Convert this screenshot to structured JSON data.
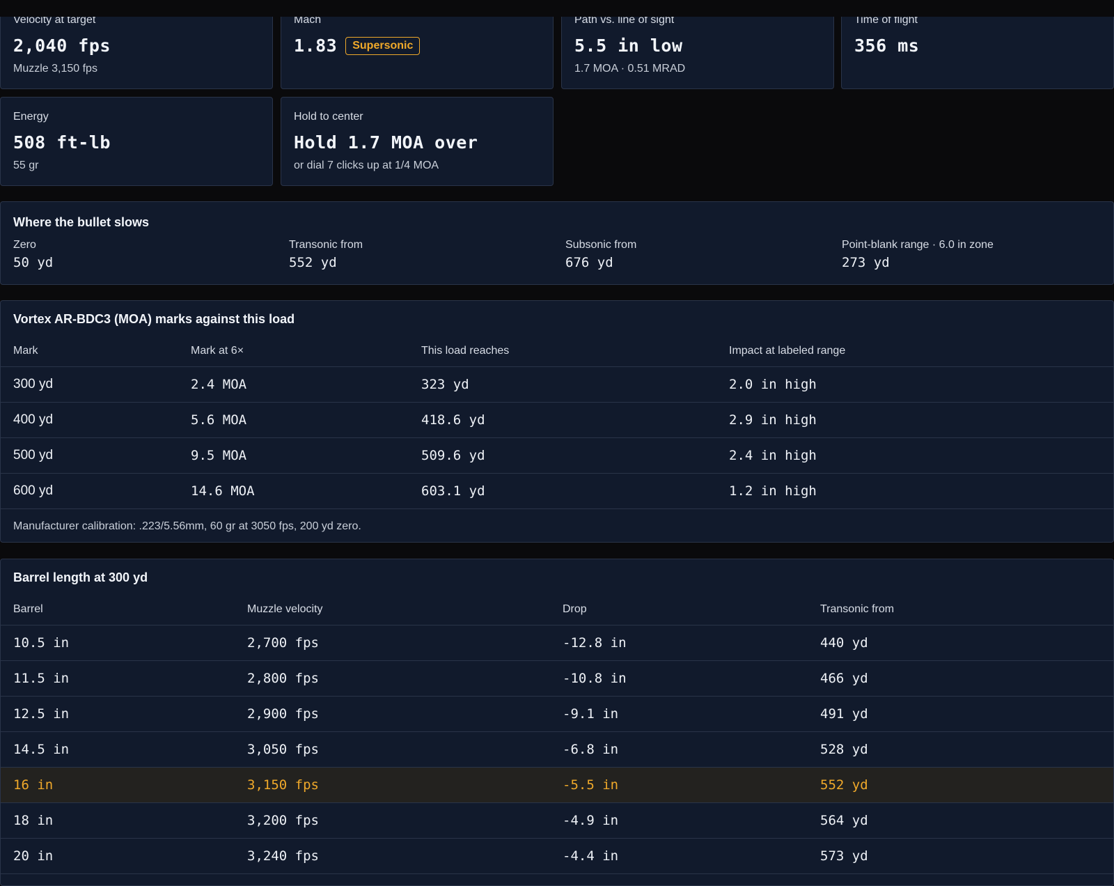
{
  "stats": {
    "velocity": {
      "label": "Velocity at target",
      "value": "2,040 fps",
      "sub": "Muzzle 3,150 fps"
    },
    "mach": {
      "label": "Mach",
      "value": "1.83",
      "badge": "Supersonic"
    },
    "path": {
      "label": "Path vs. line of sight",
      "value": "5.5 in low",
      "sub": "1.7 MOA · 0.51 MRAD"
    },
    "time": {
      "label": "Time of flight",
      "value": "356 ms"
    },
    "energy": {
      "label": "Energy",
      "value": "508 ft-lb",
      "sub": "55 gr"
    },
    "hold": {
      "label": "Hold to center",
      "value": "Hold 1.7 MOA over",
      "sub": "or dial 7 clicks up at 1/4 MOA"
    }
  },
  "slows": {
    "title": "Where the bullet slows",
    "items": [
      {
        "label": "Zero",
        "value": "50 yd"
      },
      {
        "label": "Transonic from",
        "value": "552 yd"
      },
      {
        "label": "Subsonic from",
        "value": "676 yd"
      },
      {
        "label": "Point-blank range · 6.0 in zone",
        "value": "273 yd"
      }
    ]
  },
  "bdc": {
    "title": "Vortex AR-BDC3 (MOA) marks against this load",
    "headers": [
      "Mark",
      "Mark at 6×",
      "This load reaches",
      "Impact at labeled range"
    ],
    "rows": [
      [
        "300 yd",
        "2.4 MOA",
        "323 yd",
        "2.0 in high"
      ],
      [
        "400 yd",
        "5.6 MOA",
        "418.6 yd",
        "2.9 in high"
      ],
      [
        "500 yd",
        "9.5 MOA",
        "509.6 yd",
        "2.4 in high"
      ],
      [
        "600 yd",
        "14.6 MOA",
        "603.1 yd",
        "1.2 in high"
      ]
    ],
    "footnote": "Manufacturer calibration: .223/5.56mm, 60 gr at 3050 fps, 200 yd zero."
  },
  "barrel": {
    "title": "Barrel length at 300 yd",
    "headers": [
      "Barrel",
      "Muzzle velocity",
      "Drop",
      "Transonic from"
    ],
    "rows": [
      [
        "10.5 in",
        "2,700 fps",
        "-12.8 in",
        "440 yd"
      ],
      [
        "11.5 in",
        "2,800 fps",
        "-10.8 in",
        "466 yd"
      ],
      [
        "12.5 in",
        "2,900 fps",
        "-9.1 in",
        "491 yd"
      ],
      [
        "14.5 in",
        "3,050 fps",
        "-6.8 in",
        "528 yd"
      ],
      [
        "16 in",
        "3,150 fps",
        "-5.5 in",
        "552 yd"
      ],
      [
        "18 in",
        "3,200 fps",
        "-4.9 in",
        "564 yd"
      ],
      [
        "20 in",
        "3,240 fps",
        "-4.4 in",
        "573 yd"
      ]
    ],
    "highlight_row": 4,
    "highlight_color": "#f0a92a"
  }
}
